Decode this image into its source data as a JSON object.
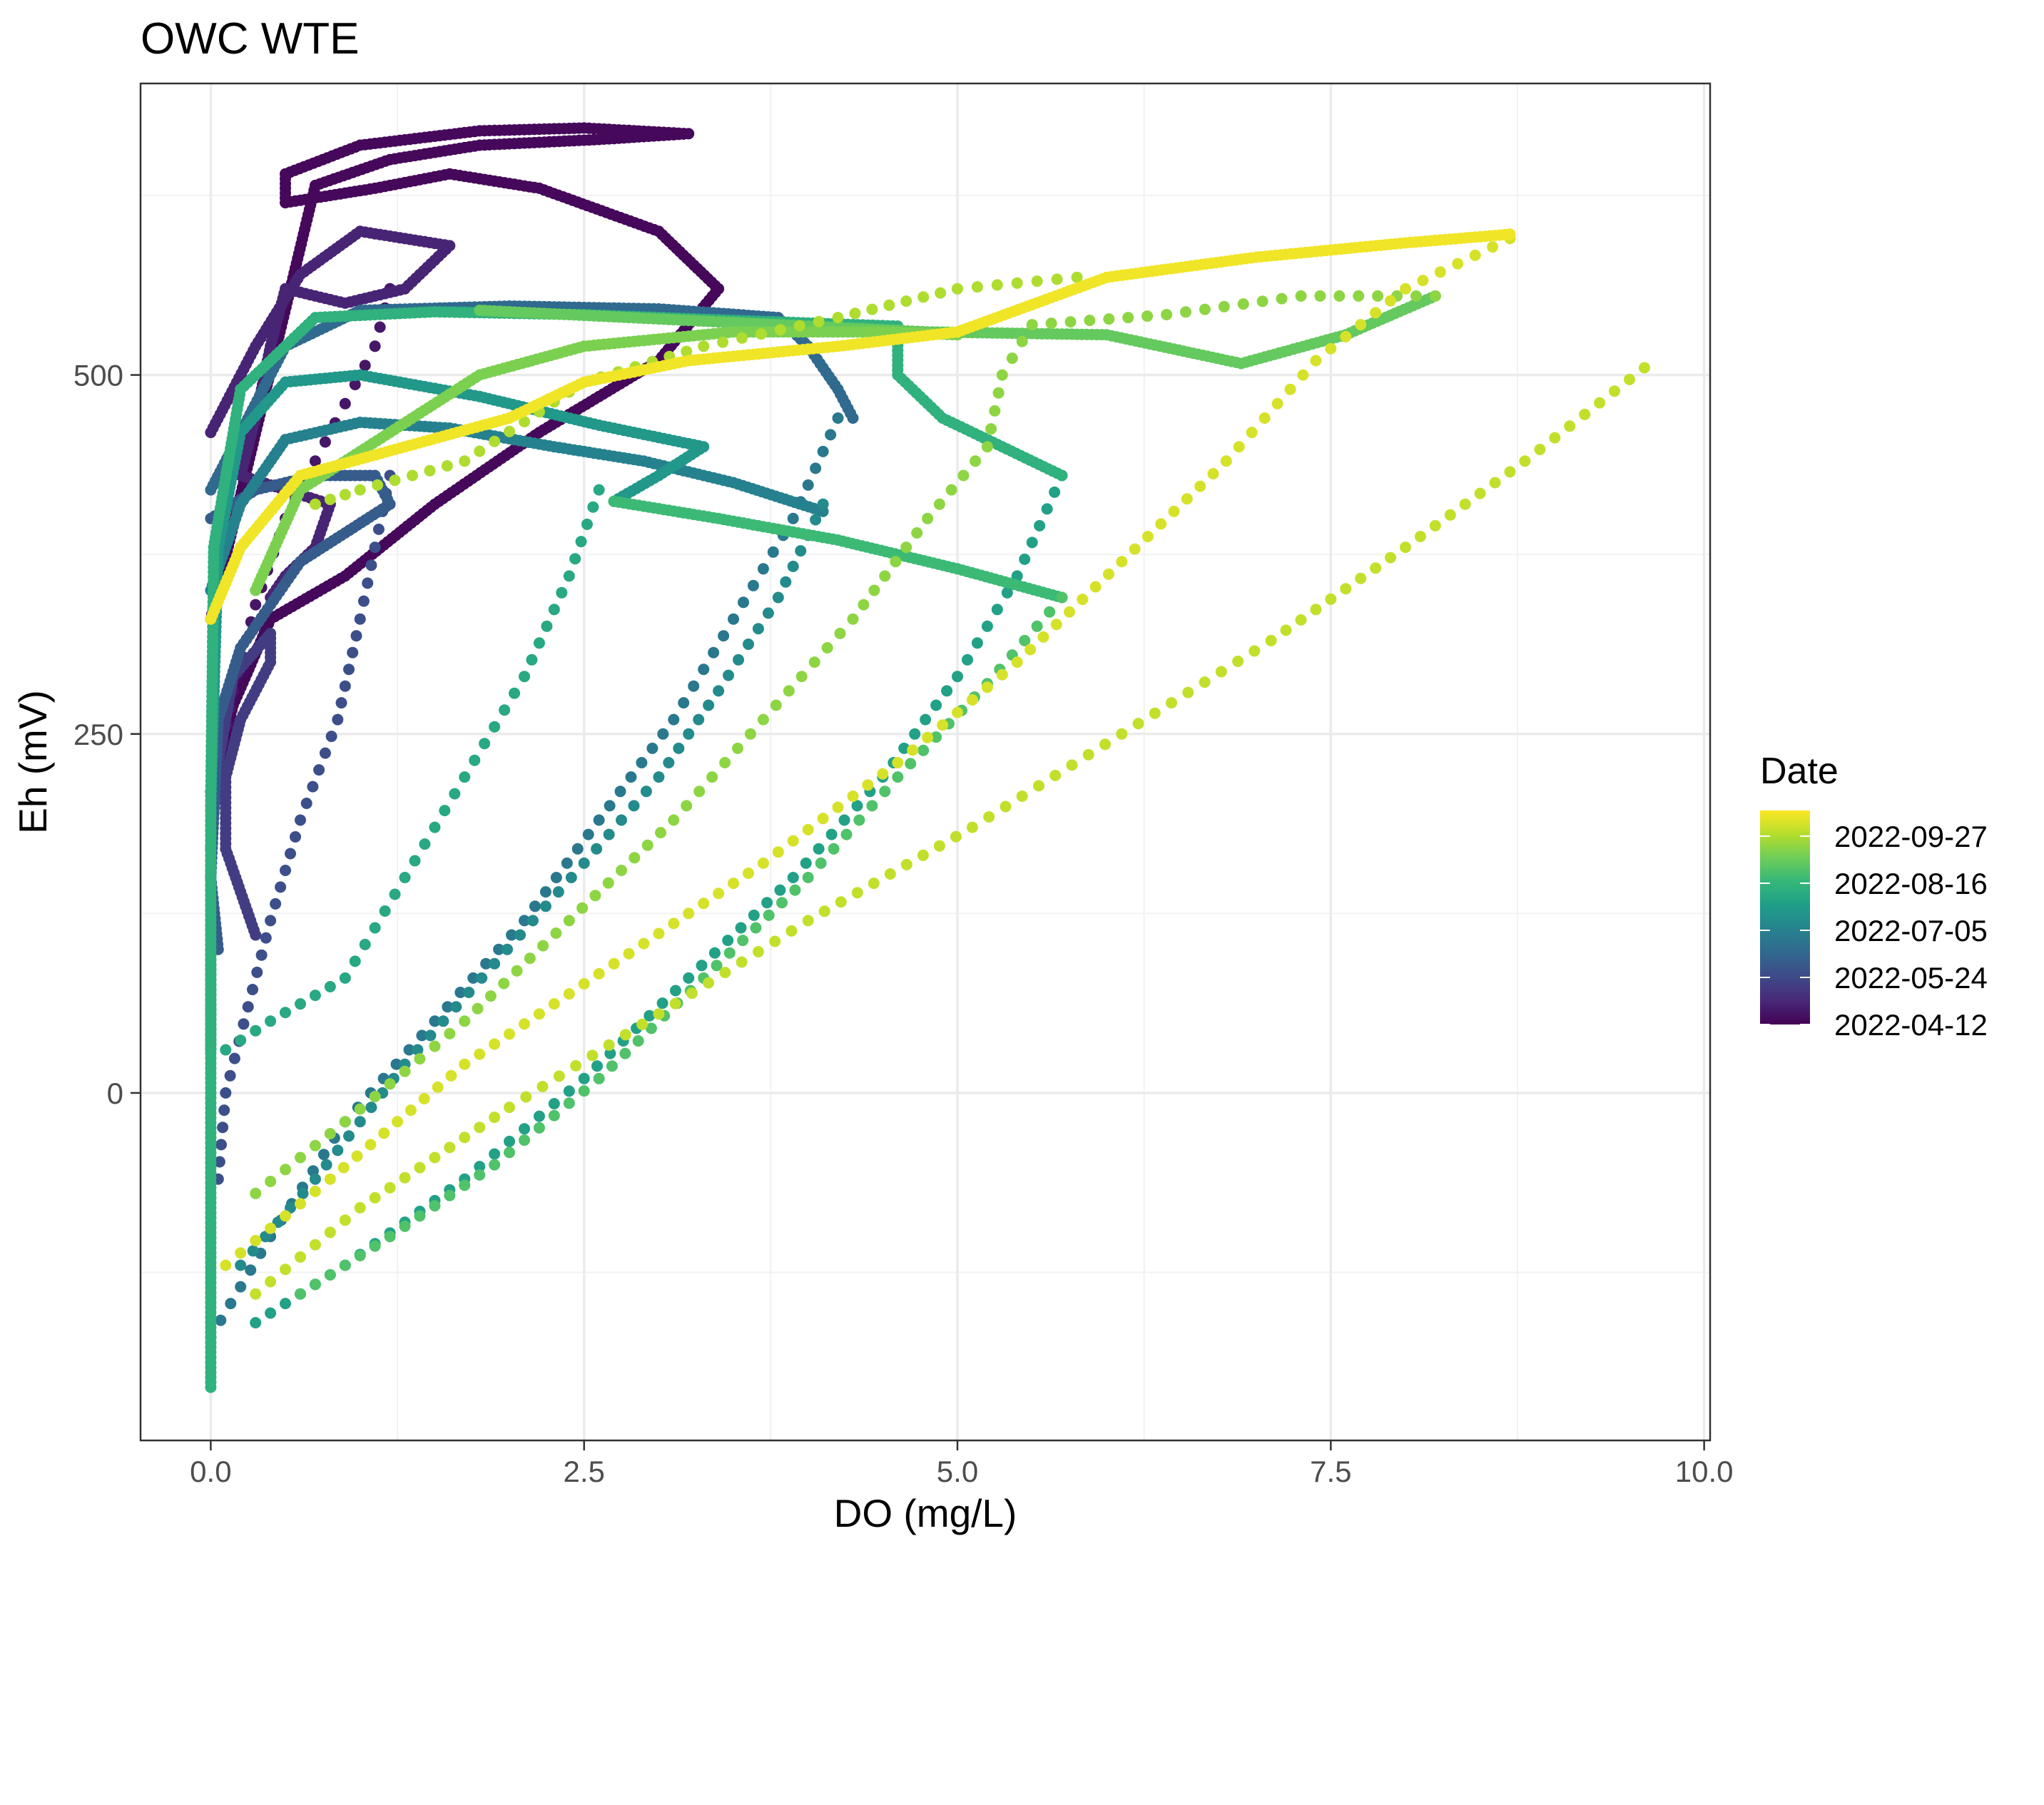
{
  "chart_data": {
    "type": "scatter",
    "title": "OWC WTE",
    "xlabel": "DO (mg/L)",
    "ylabel": "Eh (mV)",
    "xlim": [
      -0.47,
      10.04
    ],
    "ylim": [
      -242,
      703
    ],
    "x_ticks": [
      {
        "value": 0.0,
        "label": "0.0"
      },
      {
        "value": 2.5,
        "label": "2.5"
      },
      {
        "value": 5.0,
        "label": "5.0"
      },
      {
        "value": 7.5,
        "label": "7.5"
      },
      {
        "value": 10.0,
        "label": "10.0"
      }
    ],
    "y_ticks": [
      {
        "value": 0,
        "label": "0"
      },
      {
        "value": 250,
        "label": "250"
      },
      {
        "value": 500,
        "label": "500"
      }
    ],
    "grid": true,
    "legend": {
      "title": "Date",
      "position": "right",
      "type": "colorbar",
      "colormap": "viridis",
      "entries": [
        "2022-09-27",
        "2022-08-16",
        "2022-07-05",
        "2022-05-24",
        "2022-04-12"
      ],
      "positions": [
        0.88,
        0.66,
        0.44,
        0.22,
        0.0
      ]
    },
    "colors": {
      "viridis_stops": [
        "#440154",
        "#482878",
        "#3E4A89",
        "#31688E",
        "#26828E",
        "#1F9E89",
        "#35B779",
        "#6DCD59",
        "#B4DE2C",
        "#FDE725"
      ]
    },
    "series": [
      {
        "date_fraction": 0.02,
        "style": "line",
        "points": [
          [
            0.0,
            210
          ],
          [
            0.15,
            270
          ],
          [
            0.4,
            330
          ],
          [
            0.9,
            360
          ],
          [
            1.5,
            410
          ],
          [
            2.2,
            460
          ],
          [
            3.0,
            510
          ],
          [
            3.4,
            560
          ],
          [
            3.0,
            600
          ],
          [
            2.2,
            630
          ],
          [
            1.6,
            640
          ],
          [
            1.1,
            630
          ],
          [
            0.5,
            620
          ],
          [
            0.5,
            640
          ],
          [
            1.0,
            660
          ],
          [
            1.8,
            670
          ],
          [
            2.5,
            672
          ],
          [
            3.2,
            668
          ],
          [
            2.6,
            664
          ],
          [
            1.8,
            660
          ],
          [
            1.2,
            650
          ],
          [
            0.7,
            632
          ],
          [
            0.0,
            330
          ]
        ]
      },
      {
        "date_fraction": 0.06,
        "style": "dots",
        "points": [
          [
            1.2,
            560
          ],
          [
            1.1,
            520
          ],
          [
            0.9,
            480
          ],
          [
            0.7,
            440
          ],
          [
            0.5,
            400
          ],
          [
            0.3,
            340
          ],
          [
            0.15,
            280
          ],
          [
            0.05,
            220
          ]
        ]
      },
      {
        "date_fraction": 0.1,
        "style": "line",
        "points": [
          [
            0.0,
            460
          ],
          [
            0.3,
            520
          ],
          [
            0.6,
            570
          ],
          [
            1.0,
            600
          ],
          [
            1.6,
            590
          ],
          [
            1.3,
            560
          ],
          [
            0.9,
            550
          ],
          [
            0.5,
            560
          ],
          [
            0.4,
            520
          ],
          [
            0.3,
            470
          ],
          [
            0.2,
            430
          ],
          [
            0.5,
            420
          ],
          [
            0.8,
            410
          ],
          [
            0.7,
            380
          ],
          [
            0.5,
            360
          ],
          [
            0.4,
            345
          ]
        ]
      },
      {
        "date_fraction": 0.18,
        "style": "line",
        "points": [
          [
            0.0,
            170
          ],
          [
            0.05,
            230
          ],
          [
            0.15,
            290
          ],
          [
            0.4,
            320
          ],
          [
            0.4,
            300
          ],
          [
            0.2,
            260
          ],
          [
            0.1,
            220
          ],
          [
            0.1,
            170
          ],
          [
            0.2,
            140
          ],
          [
            0.3,
            110
          ]
        ]
      },
      {
        "date_fraction": 0.24,
        "style": "dots",
        "points": [
          [
            1.2,
            430
          ],
          [
            1.1,
            380
          ],
          [
            1.0,
            330
          ],
          [
            0.85,
            260
          ],
          [
            0.6,
            190
          ],
          [
            0.4,
            120
          ],
          [
            0.25,
            60
          ],
          [
            0.1,
            0
          ],
          [
            0.05,
            -60
          ]
        ]
      },
      {
        "date_fraction": 0.29,
        "style": "line",
        "points": [
          [
            0.0,
            400
          ],
          [
            0.3,
            420
          ],
          [
            0.7,
            430
          ],
          [
            1.1,
            430
          ],
          [
            1.2,
            410
          ],
          [
            0.9,
            390
          ],
          [
            0.6,
            370
          ],
          [
            0.4,
            340
          ],
          [
            0.2,
            310
          ],
          [
            0.05,
            260
          ],
          [
            0.0,
            150
          ],
          [
            0.05,
            100
          ]
        ]
      },
      {
        "date_fraction": 0.34,
        "style": "line",
        "points": [
          [
            0.0,
            420
          ],
          [
            0.2,
            460
          ],
          [
            0.5,
            520
          ],
          [
            1.0,
            545
          ],
          [
            2.0,
            548
          ],
          [
            3.0,
            546
          ],
          [
            3.8,
            540
          ],
          [
            4.0,
            520
          ],
          [
            4.2,
            490
          ],
          [
            4.3,
            470
          ]
        ]
      },
      {
        "date_fraction": 0.4,
        "style": "dots",
        "points": [
          [
            4.2,
            470
          ],
          [
            3.9,
            400
          ],
          [
            3.5,
            330
          ],
          [
            3.1,
            260
          ],
          [
            2.6,
            190
          ],
          [
            2.1,
            120
          ],
          [
            1.5,
            50
          ],
          [
            0.9,
            -20
          ],
          [
            0.4,
            -100
          ],
          [
            0.0,
            -170
          ]
        ]
      },
      {
        "date_fraction": 0.44,
        "style": "line",
        "points": [
          [
            0.0,
            350
          ],
          [
            0.2,
            410
          ],
          [
            0.5,
            455
          ],
          [
            1.0,
            467
          ],
          [
            1.6,
            463
          ],
          [
            2.3,
            450
          ],
          [
            2.9,
            440
          ],
          [
            3.5,
            425
          ],
          [
            4.1,
            405
          ]
        ]
      },
      {
        "date_fraction": 0.48,
        "style": "dots",
        "points": [
          [
            4.1,
            410
          ],
          [
            3.8,
            345
          ],
          [
            3.4,
            280
          ],
          [
            3.0,
            220
          ],
          [
            2.5,
            160
          ],
          [
            1.9,
            90
          ],
          [
            1.3,
            20
          ],
          [
            0.7,
            -60
          ],
          [
            0.2,
            -120
          ]
        ]
      },
      {
        "date_fraction": 0.53,
        "style": "line",
        "points": [
          [
            0.0,
            30
          ],
          [
            0.0,
            200
          ],
          [
            0.05,
            380
          ],
          [
            0.2,
            460
          ],
          [
            0.5,
            495
          ],
          [
            1.0,
            500
          ],
          [
            1.8,
            485
          ],
          [
            2.6,
            465
          ],
          [
            3.3,
            450
          ],
          [
            3.0,
            430
          ],
          [
            2.7,
            412
          ]
        ]
      },
      {
        "date_fraction": 0.57,
        "style": "dots",
        "points": [
          [
            5.7,
            430
          ],
          [
            5.4,
            360
          ],
          [
            5.0,
            290
          ],
          [
            4.5,
            220
          ],
          [
            3.9,
            150
          ],
          [
            3.2,
            80
          ],
          [
            2.5,
            10
          ],
          [
            1.7,
            -60
          ],
          [
            0.9,
            -120
          ],
          [
            0.3,
            -160
          ]
        ]
      },
      {
        "date_fraction": 0.6,
        "style": "dots",
        "points": [
          [
            2.6,
            420
          ],
          [
            2.4,
            360
          ],
          [
            2.1,
            290
          ],
          [
            1.7,
            220
          ],
          [
            1.3,
            150
          ],
          [
            0.9,
            80
          ],
          [
            0.4,
            50
          ],
          [
            0.1,
            30
          ]
        ]
      },
      {
        "date_fraction": 0.64,
        "style": "line",
        "points": [
          [
            0.0,
            -205
          ],
          [
            0.0,
            0
          ],
          [
            0.0,
            200
          ],
          [
            0.02,
            380
          ],
          [
            0.2,
            490
          ],
          [
            0.7,
            540
          ],
          [
            1.5,
            544
          ],
          [
            2.5,
            542
          ],
          [
            3.5,
            538
          ],
          [
            4.6,
            534
          ],
          [
            4.6,
            500
          ],
          [
            4.9,
            470
          ],
          [
            5.3,
            450
          ],
          [
            5.7,
            430
          ]
        ]
      },
      {
        "date_fraction": 0.68,
        "style": "line",
        "points": [
          [
            2.7,
            412
          ],
          [
            3.4,
            400
          ],
          [
            4.2,
            385
          ],
          [
            5.0,
            365
          ],
          [
            5.7,
            345
          ]
        ]
      },
      {
        "date_fraction": 0.72,
        "style": "dots",
        "points": [
          [
            5.7,
            345
          ],
          [
            5.2,
            285
          ],
          [
            4.6,
            220
          ],
          [
            4.0,
            150
          ],
          [
            3.3,
            80
          ],
          [
            2.6,
            10
          ],
          [
            1.9,
            -50
          ],
          [
            1.2,
            -100
          ],
          [
            0.6,
            -140
          ]
        ]
      },
      {
        "date_fraction": 0.76,
        "style": "line",
        "points": [
          [
            1.8,
            545
          ],
          [
            2.8,
            540
          ],
          [
            3.8,
            535
          ],
          [
            4.8,
            530
          ],
          [
            6.0,
            528
          ],
          [
            6.9,
            508
          ],
          [
            7.6,
            528
          ],
          [
            8.2,
            555
          ]
        ]
      },
      {
        "date_fraction": 0.8,
        "style": "line",
        "points": [
          [
            0.3,
            350
          ],
          [
            0.6,
            420
          ],
          [
            1.2,
            460
          ],
          [
            1.8,
            500
          ],
          [
            2.5,
            520
          ],
          [
            3.5,
            530
          ],
          [
            4.5,
            530
          ],
          [
            5.0,
            528
          ]
        ]
      },
      {
        "date_fraction": 0.83,
        "style": "dots",
        "points": [
          [
            8.2,
            555
          ],
          [
            7.3,
            555
          ],
          [
            6.4,
            542
          ],
          [
            5.5,
            535
          ],
          [
            5.3,
            500
          ],
          [
            5.2,
            450
          ],
          [
            4.8,
            400
          ],
          [
            4.3,
            330
          ],
          [
            3.7,
            260
          ],
          [
            3.1,
            190
          ],
          [
            2.4,
            120
          ],
          [
            1.7,
            50
          ],
          [
            0.9,
            -20
          ],
          [
            0.3,
            -70
          ]
        ]
      },
      {
        "date_fraction": 0.88,
        "style": "dots",
        "points": [
          [
            5.8,
            568
          ],
          [
            5.0,
            560
          ],
          [
            4.2,
            540
          ],
          [
            3.3,
            520
          ],
          [
            2.5,
            495
          ],
          [
            1.7,
            440
          ],
          [
            1.0,
            420
          ],
          [
            0.7,
            410
          ]
        ]
      },
      {
        "date_fraction": 0.91,
        "style": "dots",
        "points": [
          [
            9.6,
            505
          ],
          [
            8.8,
            440
          ],
          [
            8.0,
            380
          ],
          [
            7.1,
            315
          ],
          [
            6.1,
            250
          ],
          [
            5.1,
            185
          ],
          [
            4.0,
            120
          ],
          [
            3.0,
            55
          ],
          [
            2.0,
            -10
          ],
          [
            1.0,
            -80
          ],
          [
            0.3,
            -140
          ]
        ]
      },
      {
        "date_fraction": 0.94,
        "style": "dots",
        "points": [
          [
            8.7,
            595
          ],
          [
            8.0,
            560
          ],
          [
            7.4,
            510
          ],
          [
            6.8,
            440
          ],
          [
            6.1,
            370
          ],
          [
            5.4,
            300
          ],
          [
            4.6,
            230
          ],
          [
            3.7,
            160
          ],
          [
            2.7,
            90
          ],
          [
            1.7,
            20
          ],
          [
            0.8,
            -60
          ],
          [
            0.1,
            -120
          ]
        ]
      },
      {
        "date_fraction": 0.98,
        "style": "line",
        "points": [
          [
            0.0,
            330
          ],
          [
            0.2,
            380
          ],
          [
            0.6,
            430
          ],
          [
            1.3,
            450
          ],
          [
            2.0,
            470
          ],
          [
            2.5,
            495
          ],
          [
            3.2,
            510
          ],
          [
            4.2,
            520
          ],
          [
            5.0,
            530
          ],
          [
            6.0,
            568
          ],
          [
            7.0,
            582
          ],
          [
            8.0,
            592
          ],
          [
            8.7,
            598
          ]
        ]
      }
    ]
  }
}
